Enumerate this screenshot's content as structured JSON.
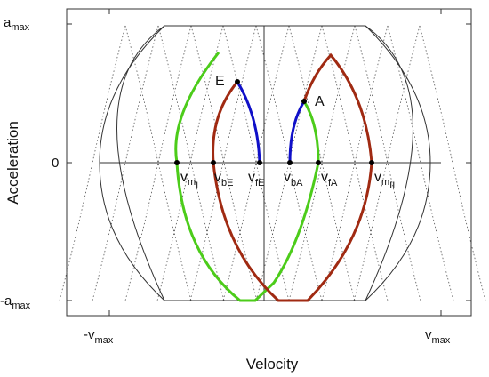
{
  "figure": {
    "xlabel": "Velocity",
    "ylabel": "Acceleration",
    "y_ticks": {
      "top": {
        "base": "a",
        "sub": "max"
      },
      "zero": "0",
      "bottom": {
        "base": "-a",
        "sub": "max"
      }
    },
    "x_ticks": {
      "left": {
        "base": "-v",
        "sub": "max"
      },
      "right": {
        "base": "v",
        "sub": "max"
      }
    },
    "points": {
      "E": "E",
      "A": "A"
    },
    "velocity_labels": [
      {
        "id": "m1",
        "base": "v",
        "sub": "m",
        "subsub": "I"
      },
      {
        "id": "bE",
        "base": "v",
        "sub": "bE"
      },
      {
        "id": "fE",
        "base": "v",
        "sub": "fE"
      },
      {
        "id": "bA",
        "base": "v",
        "sub": "bA"
      },
      {
        "id": "fA",
        "base": "v",
        "sub": "fA"
      },
      {
        "id": "m2",
        "base": "v",
        "sub": "m",
        "subsub": "II"
      }
    ],
    "colors": {
      "green": "#4ccc1a",
      "darkred": "#a02a12",
      "blue": "#1010c8",
      "grid": "#555555",
      "frame": "#333333"
    }
  }
}
